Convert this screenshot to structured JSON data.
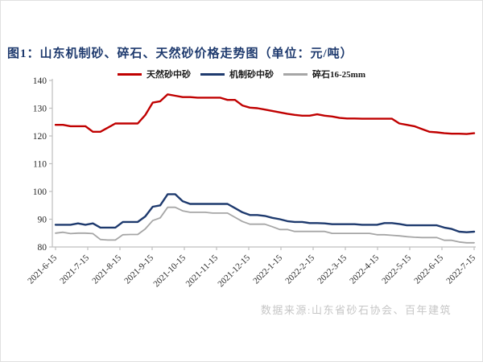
{
  "page": {
    "title": "图1：山东机制砂、碎石、天然砂价格走势图（单位：元/吨）",
    "source_note": "数据来源:山东省砂石协会、百年建筑"
  },
  "chart_data": {
    "type": "line",
    "title": "山东机制砂、碎石、天然砂价格走势图",
    "unit": "元/吨",
    "grid": false,
    "legend_position": "top",
    "ylim": [
      80,
      140
    ],
    "yticks": [
      80,
      90,
      100,
      110,
      120,
      130,
      140
    ],
    "x_tick_labels": [
      "2021-6-15",
      "2021-7-15",
      "2021-8-15",
      "2021-9-15",
      "2021-10-15",
      "2021-11-15",
      "2021-12-15",
      "2022-1-15",
      "2022-2-15",
      "2022-3-15",
      "2022-4-15",
      "2022-5-15",
      "2022-6-15",
      "2022-7-15"
    ],
    "x_note": "weekly data points, 57 points from 2021-6-15 to 2022-7-15",
    "axis_color": "#bfbfbf",
    "tick_label_color": "#262626",
    "series": [
      {
        "name": "天然砂中砂",
        "color": "#c00000",
        "width": 2.4,
        "values": [
          124,
          124,
          123.5,
          123.5,
          123.5,
          121.5,
          121.5,
          123,
          124.5,
          124.5,
          124.5,
          124.5,
          127.5,
          132,
          132.5,
          135,
          134.5,
          134,
          134,
          133.8,
          133.8,
          133.8,
          133.8,
          133,
          133,
          131,
          130.2,
          130,
          129.5,
          129,
          128.5,
          128,
          127.6,
          127.3,
          127.3,
          127.8,
          127.3,
          127,
          126.5,
          126.3,
          126.3,
          126.2,
          126.2,
          126.2,
          126.2,
          126.2,
          124.5,
          124,
          123.5,
          122.5,
          121.5,
          121.3,
          121,
          120.8,
          120.8,
          120.7,
          121
        ]
      },
      {
        "name": "机制砂中砂",
        "color": "#1e3a6e",
        "width": 2.4,
        "values": [
          88,
          88,
          88,
          88.5,
          88,
          88.5,
          87,
          87,
          87,
          89,
          89,
          89,
          91,
          94.5,
          95,
          99,
          99,
          96.5,
          95.5,
          95.5,
          95.5,
          95.5,
          95.5,
          95.5,
          94,
          92.5,
          91.5,
          91.5,
          91.2,
          90.5,
          90,
          89.3,
          89,
          89,
          88.6,
          88.6,
          88.5,
          88.2,
          88.2,
          88.2,
          88.2,
          88,
          88,
          88,
          88.6,
          88.6,
          88.3,
          87.8,
          87.8,
          87.8,
          87.8,
          87.8,
          87,
          86.5,
          85.5,
          85.3,
          85.5
        ]
      },
      {
        "name": "碎石16-25mm",
        "color": "#a6a6a6",
        "width": 1.8,
        "values": [
          85,
          85.3,
          84.8,
          85,
          85,
          84.8,
          82.7,
          82.5,
          82.5,
          84.4,
          84.5,
          84.5,
          86.5,
          89.5,
          90.5,
          94.3,
          94.3,
          93,
          92.5,
          92.5,
          92.5,
          92.2,
          92.2,
          92.2,
          90.7,
          89.2,
          88.2,
          88.2,
          88.2,
          87.3,
          86.3,
          86.3,
          85.6,
          85.6,
          85.6,
          85.6,
          85.6,
          84.9,
          84.9,
          84.9,
          84.9,
          84.9,
          84.9,
          84.4,
          84.4,
          84.2,
          84,
          83.7,
          83.5,
          83.4,
          83.4,
          83.4,
          82.4,
          82.4,
          81.8,
          81.5,
          81.5
        ]
      }
    ]
  }
}
